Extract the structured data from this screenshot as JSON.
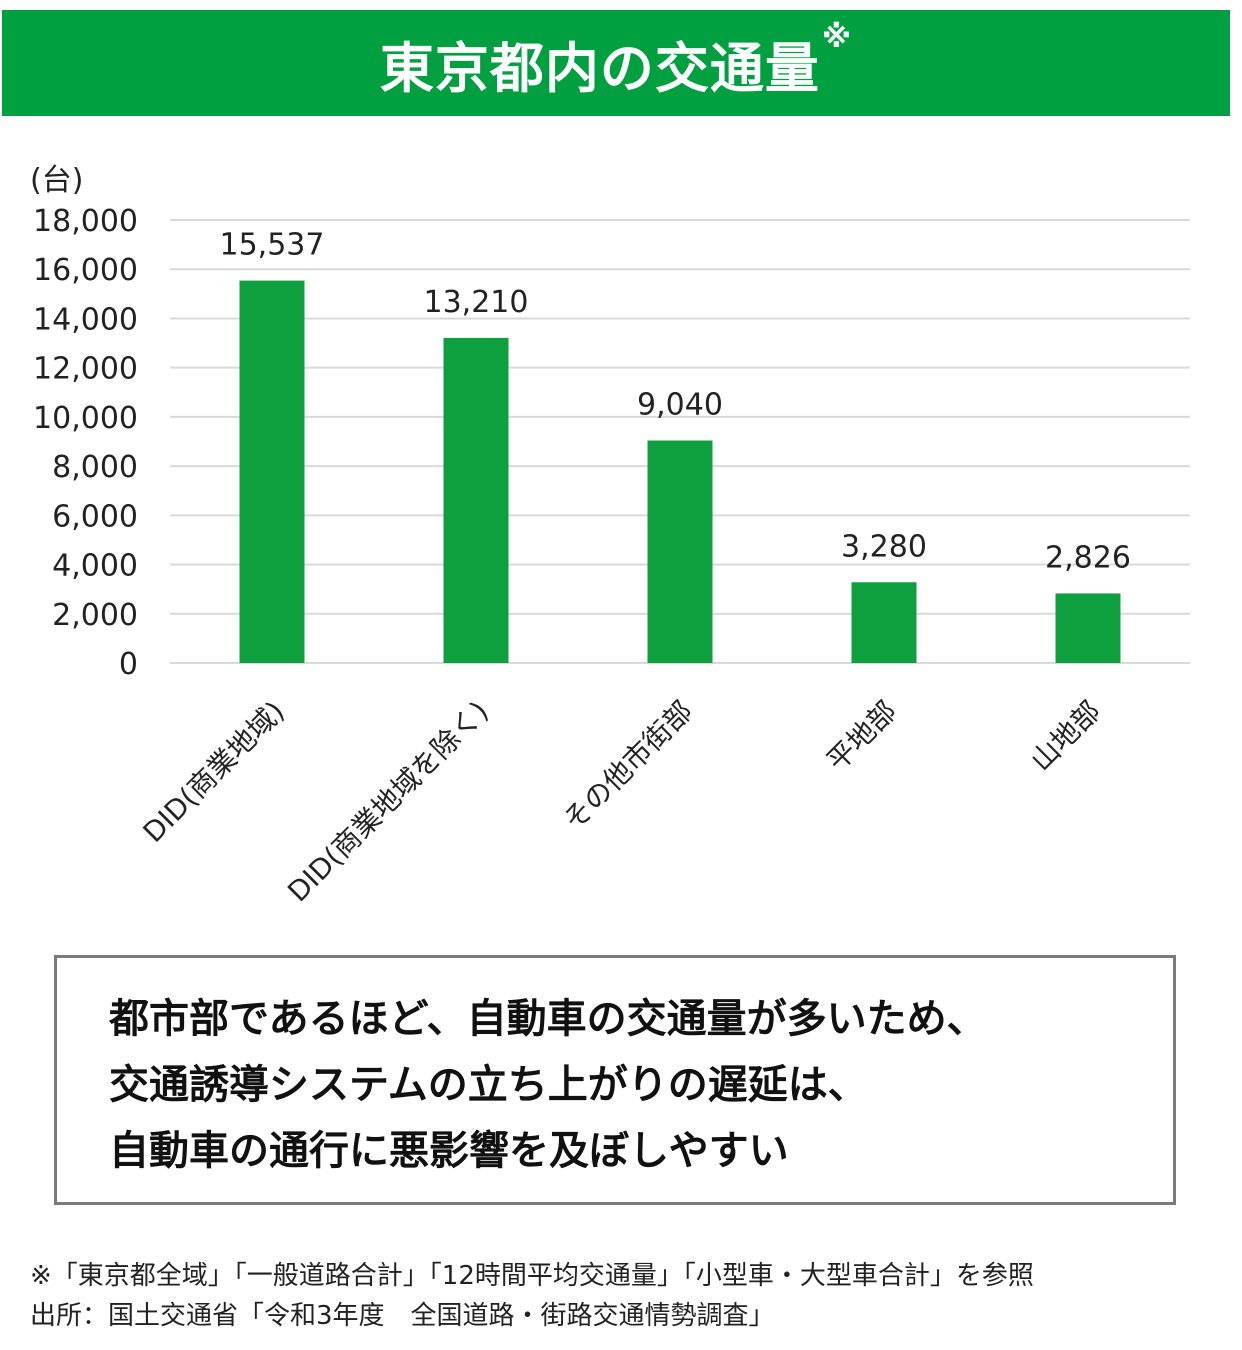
{
  "banner": {
    "title": "東京都内の交通量",
    "mark": "※"
  },
  "chart_data": {
    "type": "bar",
    "title": "東京都内の交通量",
    "ylabel": "(台)",
    "ylim": [
      0,
      18000
    ],
    "yticks": [
      "0",
      "2,000",
      "4,000",
      "6,000",
      "8,000",
      "10,000",
      "12,000",
      "14,000",
      "16,000",
      "18,000"
    ],
    "grid": true,
    "bar_color": "#0e9f3e",
    "categories": [
      "DID(商業地域)",
      "DID(商業地域を除く)",
      "その他市街部",
      "平地部",
      "山地部"
    ],
    "values": [
      15537,
      13210,
      9040,
      3280,
      2826
    ],
    "data_labels": [
      "15,537",
      "13,210",
      "9,040",
      "3,280",
      "2,826"
    ]
  },
  "callout": {
    "lines": [
      "都市部であるほど、自動車の交通量が多いため、",
      "交通誘導システムの立ち上がりの遅延は、",
      "自動車の通行に悪影響を及ぼしやすい"
    ]
  },
  "footnotes": {
    "note": "※「東京都全域」「一般道路合計」「12時間平均交通量」「小型車・大型車合計」を参照",
    "source": "出所：国土交通省「令和3年度　全国道路・街路交通情勢調査」"
  }
}
